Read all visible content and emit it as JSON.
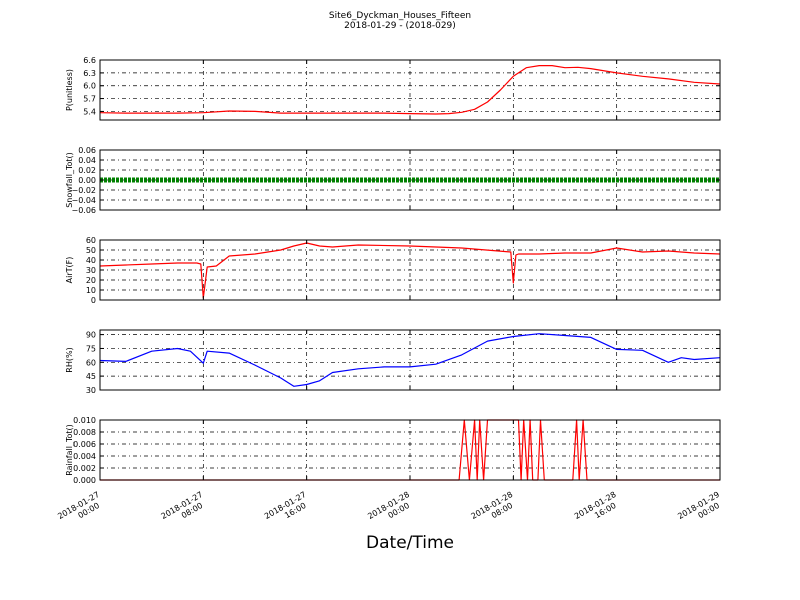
{
  "title": "Site6_Dyckman_Houses_Fifteen",
  "subtitle": "2018-01-29 - (2018-029)",
  "xlabel": "Date/Time",
  "x_tick_labels": [
    [
      "2018-01-27",
      "00:00"
    ],
    [
      "2018-01-27",
      "08:00"
    ],
    [
      "2018-01-27",
      "16:00"
    ],
    [
      "2018-01-28",
      "00:00"
    ],
    [
      "2018-01-28",
      "08:00"
    ],
    [
      "2018-01-28",
      "16:00"
    ],
    [
      "2018-01-29",
      "00:00"
    ]
  ],
  "colors": {
    "P": "#ff0000",
    "Snowfall": "#008000",
    "AirT": "#ff0000",
    "RH": "#0000ff",
    "Rainfall": "#ff0000"
  },
  "chart_data": [
    {
      "type": "line",
      "ylabel": "P(unitless)",
      "x_hours": [
        0,
        2,
        4,
        6,
        8,
        10,
        12,
        14,
        16,
        18,
        20,
        22,
        24,
        26,
        27,
        28,
        29,
        30,
        31,
        32,
        33,
        34,
        35,
        36,
        37,
        38,
        40,
        42,
        44,
        46,
        48
      ],
      "y": [
        5.37,
        5.36,
        5.36,
        5.36,
        5.37,
        5.41,
        5.4,
        5.36,
        5.36,
        5.36,
        5.36,
        5.36,
        5.35,
        5.34,
        5.35,
        5.38,
        5.45,
        5.62,
        5.9,
        6.22,
        6.42,
        6.47,
        6.47,
        6.42,
        6.43,
        6.4,
        6.3,
        6.22,
        6.16,
        6.08,
        6.04
      ],
      "ylim": [
        5.2,
        6.6
      ],
      "yticks": [
        5.4,
        5.7,
        6.0,
        6.3,
        6.6
      ],
      "ytick_labels": [
        "5.4",
        "5.7",
        "6.0",
        "6.3",
        "6.6"
      ],
      "color": "#ff0000"
    },
    {
      "type": "scatter",
      "ylabel": "Snowfall_Tot()",
      "x_hours": [
        0,
        48
      ],
      "y": [
        0,
        0
      ],
      "ylim": [
        -0.06,
        0.06
      ],
      "yticks": [
        -0.06,
        -0.04,
        -0.02,
        0.0,
        0.02,
        0.04,
        0.06
      ],
      "ytick_labels": [
        "−0.06",
        "−0.04",
        "−0.02",
        "0.00",
        "0.02",
        "0.04",
        "0.06"
      ],
      "color": "#008000"
    },
    {
      "type": "line",
      "ylabel": "AirT(F)",
      "x_hours": [
        0,
        2,
        4,
        6,
        7.5,
        7.8,
        8.0,
        8.3,
        9,
        10,
        12,
        14,
        15,
        16,
        17,
        18,
        20,
        24,
        28,
        31.8,
        32.0,
        32.2,
        32.4,
        34,
        36,
        38,
        40,
        42,
        44,
        46,
        48
      ],
      "y": [
        34,
        35,
        36,
        37,
        37,
        36,
        2,
        33,
        34,
        44,
        46,
        50,
        54,
        57,
        54,
        53,
        55,
        54,
        52,
        48,
        17,
        45,
        46,
        46,
        47,
        47,
        52,
        48,
        49,
        47,
        46
      ],
      "ylim": [
        0,
        60
      ],
      "yticks": [
        0,
        10,
        20,
        30,
        40,
        50,
        60
      ],
      "ytick_labels": [
        "0",
        "10",
        "20",
        "30",
        "40",
        "50",
        "60"
      ],
      "color": "#ff0000"
    },
    {
      "type": "line",
      "ylabel": "RH(%)",
      "x_hours": [
        0,
        2,
        4,
        6,
        7,
        8,
        8.3,
        10,
        12,
        14,
        15,
        16,
        17,
        18,
        20,
        22,
        24,
        26,
        28,
        30,
        32,
        34,
        36,
        38,
        40,
        42,
        44,
        45,
        46,
        48
      ],
      "y": [
        62,
        61,
        72,
        75,
        72,
        59,
        72,
        70,
        57,
        43,
        34,
        36,
        40,
        49,
        53,
        55,
        55,
        58,
        68,
        83,
        88,
        91,
        89,
        87,
        74,
        73,
        60,
        65,
        63,
        65
      ],
      "ylim": [
        30,
        95
      ],
      "yticks": [
        30,
        45,
        60,
        75,
        90
      ],
      "ytick_labels": [
        "30",
        "45",
        "60",
        "75",
        "90"
      ],
      "color": "#0000ff"
    },
    {
      "type": "line",
      "ylabel": "Rainfall_Tot()",
      "x_hours": [
        0,
        27.8,
        28.2,
        28.6,
        29.0,
        29.2,
        29.4,
        29.7,
        30.0,
        32.4,
        32.6,
        32.8,
        33.1,
        33.3,
        33.5,
        33.9,
        34.1,
        34.4,
        34.7,
        35.0,
        36.6,
        36.9,
        37.1,
        37.4,
        37.7,
        48
      ],
      "y": [
        0,
        0,
        0.01,
        0,
        0.01,
        0,
        0.01,
        0,
        0.01,
        0.01,
        0,
        0.01,
        0,
        0.01,
        0,
        0,
        0.01,
        0,
        0,
        0,
        0,
        0.01,
        0,
        0.01,
        0,
        0
      ],
      "ylim": [
        0,
        0.01
      ],
      "yticks": [
        0,
        0.002,
        0.004,
        0.006,
        0.008,
        0.01
      ],
      "ytick_labels": [
        "0.000",
        "0.002",
        "0.004",
        "0.006",
        "0.008",
        "0.010"
      ],
      "color": "#ff0000"
    }
  ]
}
